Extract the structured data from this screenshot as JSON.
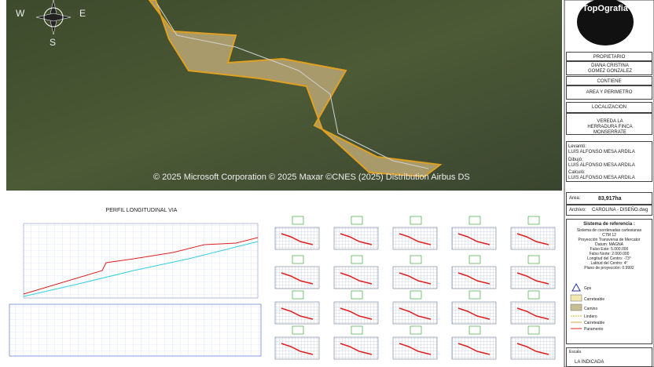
{
  "map": {
    "compass": {
      "w": "W",
      "e": "E",
      "s": "S"
    },
    "credit": "© 2025 Microsoft Corporation © 2025 Maxar ©CNES (2025) Distribution Airbus DS"
  },
  "profile": {
    "title": "PERFIL LONGITUDINAL VIA"
  },
  "title_block": {
    "logo": "TopOgrafia",
    "owner_label": "PROPIETARIO",
    "owner": "DIANA CRISTINA GOMEZ GONZALEZ",
    "contents_label": "CONTIENE",
    "contents": "AREA Y PERIMETRO",
    "location_label": "LOCALIZACION",
    "location": "VEREDA LA HERRADURA FINCA MONSERRATE",
    "surveyed_label": "Levantó:",
    "surveyed_by": "LUIS ALFONSO MESA ARDILA",
    "drawn_label": "Dibujó:",
    "drawn_by": "LUIS ALFONSO MESA ARDILA",
    "calculated_label": "Calculó:",
    "calculated_by": "LUIS ALFONSO MESA ARDILA",
    "area_label": "Area:",
    "area": "83,917ha",
    "file_label": "Archivo:",
    "file": "CAROLINA - DISEÑO.dwg",
    "reference": {
      "title": "Sistema de referencia :",
      "lines": [
        "Sistema de coordenadas cartesianas CTM 12",
        "Proyección Transversa de Mercator",
        "Datum: MAGNA",
        "Falso Este: 5.000.000",
        "Falso Norte: 2.000.000",
        "Longitud del Centro: -73°",
        "Latitud del Centro: 4°",
        "Plano de proyección: 0.9992"
      ]
    },
    "legend": [
      "Gps",
      "Carreteable",
      "Camino",
      "Lindero",
      "Carreteable",
      "Paramento"
    ],
    "scale_label": "Escala",
    "scale": "LA INDICADA"
  }
}
